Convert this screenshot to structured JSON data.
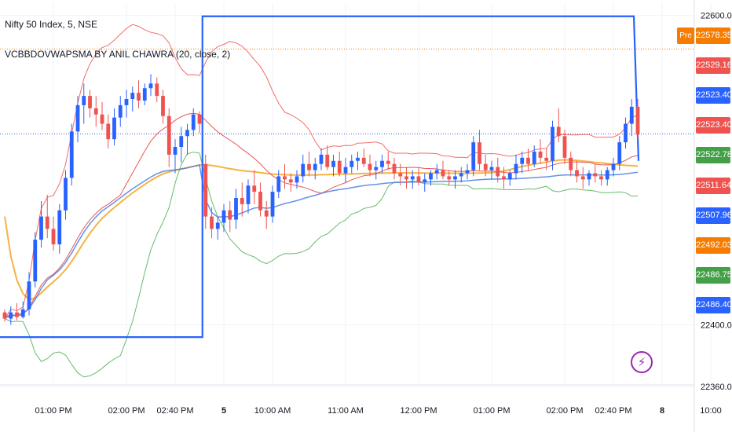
{
  "header": {
    "title": "Nifty 50 Index, 5, NSE",
    "indicator": "VCBBDOVWAPSMA BY ANIL CHAWRA (20, close, 2)"
  },
  "axis": {
    "y_ticks": [
      {
        "value": 22600,
        "label": "22600.00"
      },
      {
        "value": 22400,
        "label": "22400.00"
      },
      {
        "value": 22360,
        "label": "22360.00"
      }
    ],
    "x_ticks": [
      {
        "label": "01:00 PM",
        "i": 8
      },
      {
        "label": "02:00 PM",
        "i": 20
      },
      {
        "label": "02:40 PM",
        "i": 28
      },
      {
        "label": "5",
        "i": 36,
        "bold": true
      },
      {
        "label": "10:00 AM",
        "i": 44
      },
      {
        "label": "11:00 AM",
        "i": 56
      },
      {
        "label": "12:00 PM",
        "i": 68
      },
      {
        "label": "01:00 PM",
        "i": 80
      },
      {
        "label": "02:00 PM",
        "i": 92
      },
      {
        "label": "02:40 PM",
        "i": 100
      },
      {
        "label": "8",
        "i": 108,
        "bold": true
      },
      {
        "label": "10:00",
        "i": 116
      }
    ]
  },
  "price_tags": [
    {
      "value": 22578.35,
      "label": "22578.35",
      "color": "#f57c00",
      "pre": "Pre"
    },
    {
      "value": 22529.16,
      "label": "22529.16",
      "color": "#ef5350"
    },
    {
      "value": 22523.4,
      "label": "22523.40",
      "color": "#2962ff"
    },
    {
      "value": 22523.4,
      "label": "22523.40",
      "color": "#ef5350",
      "current": true
    },
    {
      "value": 22522.78,
      "label": "22522.78",
      "color": "#43a047"
    },
    {
      "value": 22511.64,
      "label": "22511.64",
      "color": "#ef5350"
    },
    {
      "value": 22507.96,
      "label": "22507.96",
      "color": "#2962ff"
    },
    {
      "value": 22492.03,
      "label": "22492.03",
      "color": "#f57c00"
    },
    {
      "value": 22486.75,
      "label": "22486.75",
      "color": "#43a047"
    },
    {
      "value": 22486.4,
      "label": "22486.40",
      "color": "#2962ff"
    }
  ],
  "colors": {
    "up": "#2962ff",
    "down": "#ef5350",
    "sma": "#f5a623",
    "vwap": "#4a7de8",
    "bb_upper": "#ef5350",
    "bb_lower": "#4caf50",
    "bb_basis": "#e53935",
    "prev_day_box": "#2962ff",
    "pre_line": "#f57c00",
    "grid": "#f0f3fa"
  },
  "chart_data": {
    "type": "candlestick",
    "title": "Nifty 50 Index, 5, NSE",
    "indicator": "VCBBDOVWAPSMA BY ANIL CHAWRA (20, close, 2)",
    "ylim": [
      22356,
      22608
    ],
    "candles": [
      [
        22408,
        22410,
        22402,
        22404
      ],
      [
        22404,
        22412,
        22400,
        22408
      ],
      [
        22408,
        22414,
        22403,
        22405
      ],
      [
        22405,
        22415,
        22404,
        22410
      ],
      [
        22410,
        22434,
        22406,
        22428
      ],
      [
        22428,
        22460,
        22424,
        22455
      ],
      [
        22455,
        22480,
        22450,
        22470
      ],
      [
        22470,
        22484,
        22456,
        22462
      ],
      [
        22462,
        22470,
        22448,
        22452
      ],
      [
        22452,
        22478,
        22446,
        22474
      ],
      [
        22474,
        22500,
        22468,
        22495
      ],
      [
        22495,
        22530,
        22490,
        22525
      ],
      [
        22525,
        22548,
        22518,
        22542
      ],
      [
        22542,
        22556,
        22530,
        22548
      ],
      [
        22548,
        22552,
        22534,
        22540
      ],
      [
        22540,
        22548,
        22528,
        22536
      ],
      [
        22536,
        22544,
        22526,
        22530
      ],
      [
        22530,
        22536,
        22514,
        22520
      ],
      [
        22520,
        22540,
        22516,
        22534
      ],
      [
        22534,
        22548,
        22528,
        22542
      ],
      [
        22542,
        22552,
        22534,
        22546
      ],
      [
        22546,
        22554,
        22538,
        22550
      ],
      [
        22550,
        22558,
        22540,
        22545
      ],
      [
        22545,
        22556,
        22542,
        22553
      ],
      [
        22553,
        22562,
        22548,
        22556
      ],
      [
        22556,
        22560,
        22544,
        22548
      ],
      [
        22548,
        22552,
        22530,
        22535
      ],
      [
        22535,
        22540,
        22502,
        22510
      ],
      [
        22510,
        22520,
        22498,
        22515
      ],
      [
        22515,
        22528,
        22505,
        22522
      ],
      [
        22522,
        22530,
        22510,
        22526
      ],
      [
        22526,
        22540,
        22522,
        22536
      ],
      [
        22536,
        22538,
        22524,
        22530
      ],
      [
        22504,
        22510,
        22462,
        22470
      ],
      [
        22470,
        22476,
        22456,
        22462
      ],
      [
        22462,
        22470,
        22455,
        22466
      ],
      [
        22466,
        22478,
        22460,
        22474
      ],
      [
        22474,
        22480,
        22460,
        22468
      ],
      [
        22468,
        22488,
        22462,
        22482
      ],
      [
        22482,
        22492,
        22470,
        22478
      ],
      [
        22478,
        22494,
        22472,
        22490
      ],
      [
        22490,
        22500,
        22478,
        22486
      ],
      [
        22486,
        22492,
        22470,
        22474
      ],
      [
        22474,
        22480,
        22462,
        22470
      ],
      [
        22470,
        22490,
        22466,
        22486
      ],
      [
        22486,
        22500,
        22482,
        22496
      ],
      [
        22496,
        22504,
        22488,
        22494
      ],
      [
        22494,
        22498,
        22486,
        22492
      ],
      [
        22492,
        22500,
        22488,
        22496
      ],
      [
        22496,
        22510,
        22492,
        22504
      ],
      [
        22504,
        22512,
        22496,
        22500
      ],
      [
        22500,
        22508,
        22494,
        22504
      ],
      [
        22504,
        22514,
        22500,
        22510
      ],
      [
        22510,
        22516,
        22500,
        22502
      ],
      [
        22502,
        22510,
        22496,
        22506
      ],
      [
        22506,
        22512,
        22496,
        22498
      ],
      [
        22498,
        22508,
        22492,
        22502
      ],
      [
        22502,
        22510,
        22498,
        22506
      ],
      [
        22506,
        22512,
        22500,
        22508
      ],
      [
        22508,
        22514,
        22502,
        22504
      ],
      [
        22504,
        22510,
        22496,
        22500
      ],
      [
        22500,
        22506,
        22494,
        22502
      ],
      [
        22502,
        22510,
        22498,
        22506
      ],
      [
        22506,
        22512,
        22500,
        22504
      ],
      [
        22504,
        22508,
        22494,
        22498
      ],
      [
        22498,
        22504,
        22490,
        22496
      ],
      [
        22496,
        22502,
        22488,
        22494
      ],
      [
        22494,
        22500,
        22488,
        22496
      ],
      [
        22496,
        22502,
        22490,
        22492
      ],
      [
        22492,
        22498,
        22486,
        22494
      ],
      [
        22494,
        22500,
        22490,
        22498
      ],
      [
        22498,
        22504,
        22494,
        22500
      ],
      [
        22500,
        22506,
        22494,
        22496
      ],
      [
        22496,
        22500,
        22490,
        22494
      ],
      [
        22494,
        22500,
        22488,
        22496
      ],
      [
        22496,
        22502,
        22492,
        22498
      ],
      [
        22498,
        22504,
        22494,
        22500
      ],
      [
        22500,
        22522,
        22496,
        22518
      ],
      [
        22518,
        22526,
        22500,
        22504
      ],
      [
        22504,
        22510,
        22496,
        22500
      ],
      [
        22500,
        22506,
        22494,
        22502
      ],
      [
        22502,
        22508,
        22492,
        22496
      ],
      [
        22496,
        22502,
        22488,
        22494
      ],
      [
        22494,
        22500,
        22490,
        22498
      ],
      [
        22498,
        22510,
        22494,
        22504
      ],
      [
        22504,
        22512,
        22498,
        22508
      ],
      [
        22508,
        22514,
        22500,
        22504
      ],
      [
        22504,
        22516,
        22502,
        22512
      ],
      [
        22512,
        22520,
        22504,
        22508
      ],
      [
        22508,
        22514,
        22500,
        22506
      ],
      [
        22506,
        22532,
        22500,
        22528
      ],
      [
        22528,
        22540,
        22518,
        22522
      ],
      [
        22522,
        22526,
        22504,
        22508
      ],
      [
        22508,
        22512,
        22496,
        22500
      ],
      [
        22500,
        22506,
        22492,
        22496
      ],
      [
        22496,
        22502,
        22488,
        22494
      ],
      [
        22494,
        22500,
        22490,
        22498
      ],
      [
        22498,
        22504,
        22492,
        22496
      ],
      [
        22496,
        22500,
        22490,
        22494
      ],
      [
        22494,
        22502,
        22490,
        22500
      ],
      [
        22500,
        22508,
        22496,
        22504
      ],
      [
        22504,
        22522,
        22500,
        22518
      ],
      [
        22518,
        22534,
        22514,
        22530
      ],
      [
        22530,
        22546,
        22522,
        22541
      ],
      [
        22541,
        22546,
        22520,
        22523
      ]
    ],
    "prev_day_high": 22599.5,
    "prev_day_low": 22392,
    "pre_market_level": 22578.35,
    "current_price": 22523.4
  }
}
